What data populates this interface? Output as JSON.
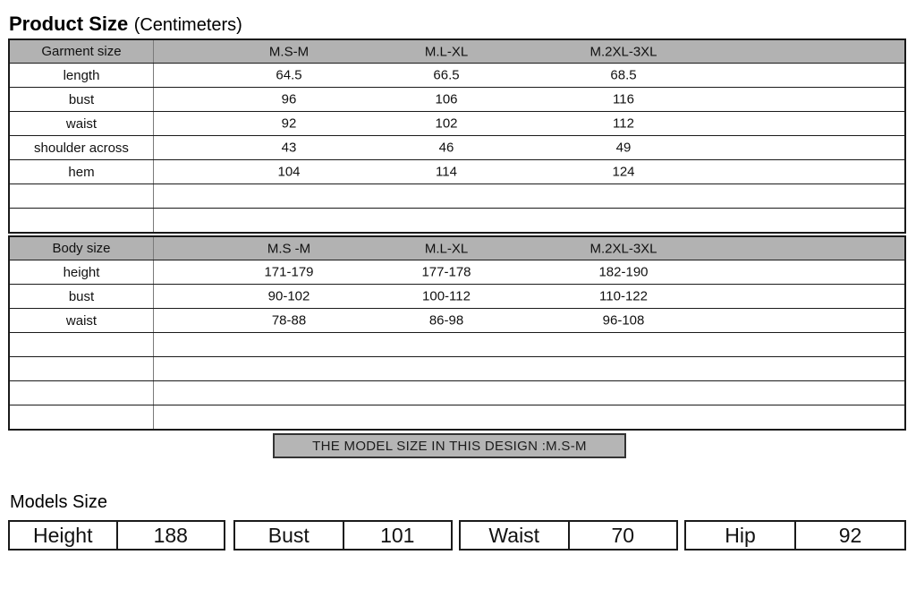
{
  "title": {
    "main": "Product Size",
    "sub": "(Centimeters)"
  },
  "garment_table": {
    "header": {
      "label": "Garment size",
      "cols": [
        "M.S-M",
        "M.L-XL",
        "M.2XL-3XL"
      ]
    },
    "rows": [
      {
        "label": "length",
        "values": [
          "64.5",
          "66.5",
          "68.5"
        ]
      },
      {
        "label": "bust",
        "values": [
          "96",
          "106",
          "116"
        ]
      },
      {
        "label": "waist",
        "values": [
          "92",
          "102",
          "112"
        ]
      },
      {
        "label": "shoulder across",
        "values": [
          "43",
          "46",
          "49"
        ]
      },
      {
        "label": "hem",
        "values": [
          "104",
          "114",
          "124"
        ]
      },
      {
        "label": "",
        "values": [
          "",
          "",
          ""
        ]
      },
      {
        "label": "",
        "values": [
          "",
          "",
          ""
        ]
      }
    ]
  },
  "body_table": {
    "header": {
      "label": "Body size",
      "cols": [
        "M.S -M",
        "M.L-XL",
        "M.2XL-3XL"
      ]
    },
    "rows": [
      {
        "label": "height",
        "values": [
          "171-179",
          "177-178",
          "182-190"
        ]
      },
      {
        "label": "bust",
        "values": [
          "90-102",
          "100-112",
          "110-122"
        ]
      },
      {
        "label": "waist",
        "values": [
          "78-88",
          "86-98",
          "96-108"
        ]
      },
      {
        "label": "",
        "values": [
          "",
          "",
          ""
        ]
      },
      {
        "label": "",
        "values": [
          "",
          "",
          ""
        ]
      },
      {
        "label": "",
        "values": [
          "",
          "",
          ""
        ]
      },
      {
        "label": "",
        "values": [
          "",
          "",
          ""
        ]
      }
    ]
  },
  "banner": {
    "text": "THE MODEL SIZE IN THIS DESIGN :M.S-M"
  },
  "models": {
    "heading": "Models Size",
    "entries": [
      {
        "label": "Height",
        "value": "188"
      },
      {
        "label": "Bust",
        "value": "101"
      },
      {
        "label": "Waist",
        "value": "70"
      },
      {
        "label": "Hip",
        "value": "92"
      }
    ]
  },
  "colors": {
    "header_gray": "#b2b2b2",
    "banner_gray": "#b5b5b5",
    "border_dark": "#1a1a1a",
    "divider_gray": "#7a7a7a"
  }
}
